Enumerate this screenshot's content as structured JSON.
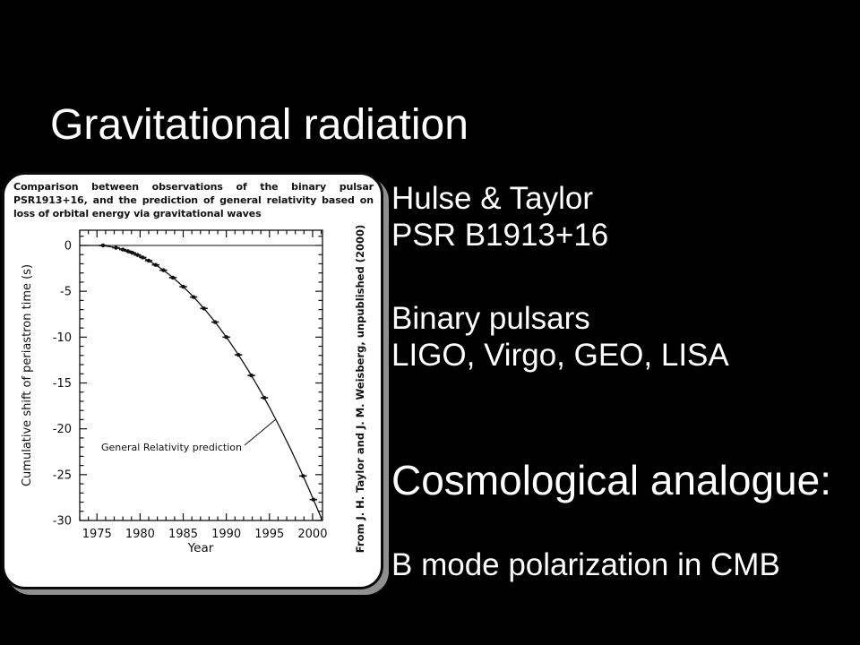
{
  "slide": {
    "title": "Gravitational radiation",
    "right_column": {
      "discovery": "Hulse & Taylor",
      "pulsar": "PSR B1913+16",
      "binary": "Binary pulsars",
      "detectors": "LIGO, Virgo, GEO, LISA",
      "analogue_heading": "Cosmological analogue:",
      "bmode": "B mode polarization in CMB"
    },
    "colors": {
      "background": "#000000",
      "text": "#ffffff",
      "figure_background": "#ffffff",
      "figure_ink": "#111111",
      "figure_shadow": "#8f8f8f"
    }
  },
  "chart_data": {
    "type": "line",
    "title_lines": [
      "Comparison between observations of the binary pulsar",
      "PSR1913+16, and the prediction of general relativity based on",
      "loss of orbital energy via gravitational waves"
    ],
    "xlabel": "Year",
    "ylabel": "Cumulative shift of periastron time (s)",
    "annotation": "General Relativity prediction",
    "credit": "From J. H. Taylor and J. M. Weisberg, unpublished (2000)",
    "xlim": [
      1973.0,
      2001.15
    ],
    "ylim": [
      -30.0,
      1.66
    ],
    "x_ticks_major": [
      1975,
      1980,
      1985,
      1990,
      1995,
      2000
    ],
    "y_ticks_major": [
      0,
      -5,
      -10,
      -15,
      -20,
      -25,
      -30
    ],
    "x_minor_step": 1,
    "y_minor_step": 1,
    "grid": false,
    "legend": false,
    "gr_prediction": {
      "vertex_year": 1974.8,
      "quadratic_coefficient": -0.0433,
      "note": "shift(s) = coefficient x (year - vertex_year)^2"
    },
    "observed_points": [
      [
        1975.7,
        0.0
      ],
      [
        1977.2,
        -0.25
      ],
      [
        1978.0,
        -0.45
      ],
      [
        1978.6,
        -0.63
      ],
      [
        1979.1,
        -0.8
      ],
      [
        1979.7,
        -1.04
      ],
      [
        1980.3,
        -1.31
      ],
      [
        1981.0,
        -1.66
      ],
      [
        1981.8,
        -2.12
      ],
      [
        1982.7,
        -2.7
      ],
      [
        1983.8,
        -3.51
      ],
      [
        1985.0,
        -4.5
      ],
      [
        1986.2,
        -5.63
      ],
      [
        1987.4,
        -6.87
      ],
      [
        1988.7,
        -8.36
      ],
      [
        1990.0,
        -10.0
      ],
      [
        1991.4,
        -11.93
      ],
      [
        1992.9,
        -14.18
      ],
      [
        1994.4,
        -16.62
      ],
      [
        1998.9,
        -25.14
      ],
      [
        2000.1,
        -27.72
      ]
    ]
  }
}
